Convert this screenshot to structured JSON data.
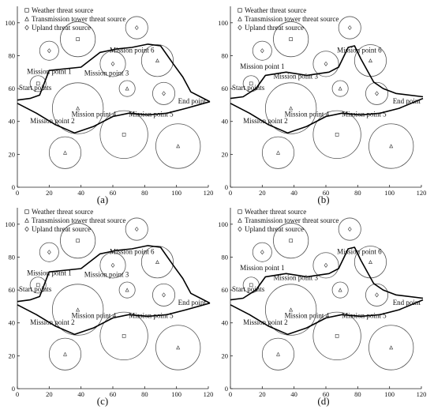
{
  "legend": {
    "weather": "Weather threat source",
    "tower": "Transmission tower threat source",
    "upland": "Upland threat source"
  },
  "labels": {
    "start": "Start points",
    "end": "End point",
    "mp1": "Mission point 1",
    "mp2": "Mission point 2",
    "mp3": "Mission point 3",
    "mp4": "Mission point 4",
    "mp5": "Mission point 5",
    "mp6": "Mission point 6"
  },
  "axes": {
    "xlim": [
      0,
      120
    ],
    "ylim": [
      0,
      110
    ],
    "xticks": [
      0,
      20,
      40,
      60,
      80,
      100,
      120
    ],
    "yticks": [
      0,
      20,
      40,
      60,
      80,
      100
    ]
  },
  "threats": [
    {
      "type": "weather",
      "x": 13,
      "y": 63,
      "r": 5
    },
    {
      "type": "upland",
      "x": 20,
      "y": 83,
      "r": 6
    },
    {
      "type": "weather",
      "x": 38,
      "y": 90,
      "r": 11
    },
    {
      "type": "upland",
      "x": 75,
      "y": 97,
      "r": 7
    },
    {
      "type": "upland",
      "x": 60,
      "y": 75,
      "r": 8
    },
    {
      "type": "tower",
      "x": 88,
      "y": 77,
      "r": 10
    },
    {
      "type": "tower",
      "x": 38,
      "y": 48,
      "r": 16
    },
    {
      "type": "tower",
      "x": 69,
      "y": 60,
      "r": 5
    },
    {
      "type": "upland",
      "x": 92,
      "y": 57,
      "r": 7
    },
    {
      "type": "tower",
      "x": 30,
      "y": 21,
      "r": 10
    },
    {
      "type": "weather",
      "x": 67,
      "y": 32,
      "r": 15
    },
    {
      "type": "tower",
      "x": 101,
      "y": 25,
      "r": 14
    }
  ],
  "panels": [
    {
      "id": "a",
      "caption": "(a)",
      "path_upper": [
        [
          0,
          53
        ],
        [
          8,
          54
        ],
        [
          14,
          56
        ],
        [
          20,
          71
        ],
        [
          40,
          73
        ],
        [
          52,
          82
        ],
        [
          62,
          84
        ],
        [
          72,
          85
        ],
        [
          82,
          87
        ],
        [
          90,
          86
        ],
        [
          98,
          75
        ],
        [
          104,
          67
        ],
        [
          109,
          58
        ],
        [
          121,
          52
        ]
      ],
      "path_lower": [
        [
          0,
          51
        ],
        [
          12,
          45
        ],
        [
          24,
          38
        ],
        [
          36,
          33
        ],
        [
          48,
          37
        ],
        [
          60,
          43
        ],
        [
          70,
          45
        ],
        [
          82,
          44
        ],
        [
          94,
          45
        ],
        [
          106,
          48
        ],
        [
          121,
          52
        ]
      ]
    },
    {
      "id": "b",
      "caption": "(b)",
      "path_upper": [
        [
          0,
          54
        ],
        [
          8,
          55
        ],
        [
          16,
          60
        ],
        [
          22,
          68
        ],
        [
          35,
          70
        ],
        [
          48,
          68
        ],
        [
          62,
          70
        ],
        [
          68,
          73
        ],
        [
          74,
          85
        ],
        [
          78,
          86
        ],
        [
          82,
          78
        ],
        [
          90,
          64
        ],
        [
          96,
          60
        ],
        [
          104,
          57
        ],
        [
          121,
          55
        ]
      ],
      "path_lower": [
        [
          0,
          51
        ],
        [
          12,
          45
        ],
        [
          24,
          38
        ],
        [
          36,
          33
        ],
        [
          48,
          37
        ],
        [
          60,
          43
        ],
        [
          70,
          45
        ],
        [
          82,
          44
        ],
        [
          94,
          45
        ],
        [
          106,
          48
        ],
        [
          121,
          54
        ]
      ]
    },
    {
      "id": "c",
      "caption": "(c)",
      "path_upper": [
        [
          0,
          53
        ],
        [
          8,
          54
        ],
        [
          14,
          56
        ],
        [
          20,
          71
        ],
        [
          40,
          73
        ],
        [
          52,
          82
        ],
        [
          62,
          84
        ],
        [
          72,
          85
        ],
        [
          82,
          87
        ],
        [
          90,
          86
        ],
        [
          98,
          75
        ],
        [
          104,
          67
        ],
        [
          109,
          58
        ],
        [
          121,
          52
        ]
      ],
      "path_lower": [
        [
          0,
          51
        ],
        [
          12,
          45
        ],
        [
          24,
          38
        ],
        [
          36,
          33
        ],
        [
          48,
          37
        ],
        [
          60,
          43
        ],
        [
          70,
          45
        ],
        [
          82,
          44
        ],
        [
          94,
          45
        ],
        [
          106,
          48
        ],
        [
          121,
          52
        ]
      ]
    },
    {
      "id": "d",
      "caption": "(d)",
      "path_upper": [
        [
          0,
          54
        ],
        [
          8,
          55
        ],
        [
          16,
          60
        ],
        [
          22,
          68
        ],
        [
          35,
          70
        ],
        [
          48,
          68
        ],
        [
          62,
          70
        ],
        [
          68,
          73
        ],
        [
          74,
          85
        ],
        [
          78,
          86
        ],
        [
          82,
          78
        ],
        [
          90,
          64
        ],
        [
          96,
          60
        ],
        [
          104,
          57
        ],
        [
          121,
          55
        ]
      ],
      "path_lower": [
        [
          0,
          51
        ],
        [
          12,
          45
        ],
        [
          24,
          38
        ],
        [
          36,
          33
        ],
        [
          48,
          37
        ],
        [
          60,
          43
        ],
        [
          70,
          45
        ],
        [
          82,
          44
        ],
        [
          94,
          45
        ],
        [
          106,
          48
        ],
        [
          121,
          54
        ]
      ]
    }
  ]
}
